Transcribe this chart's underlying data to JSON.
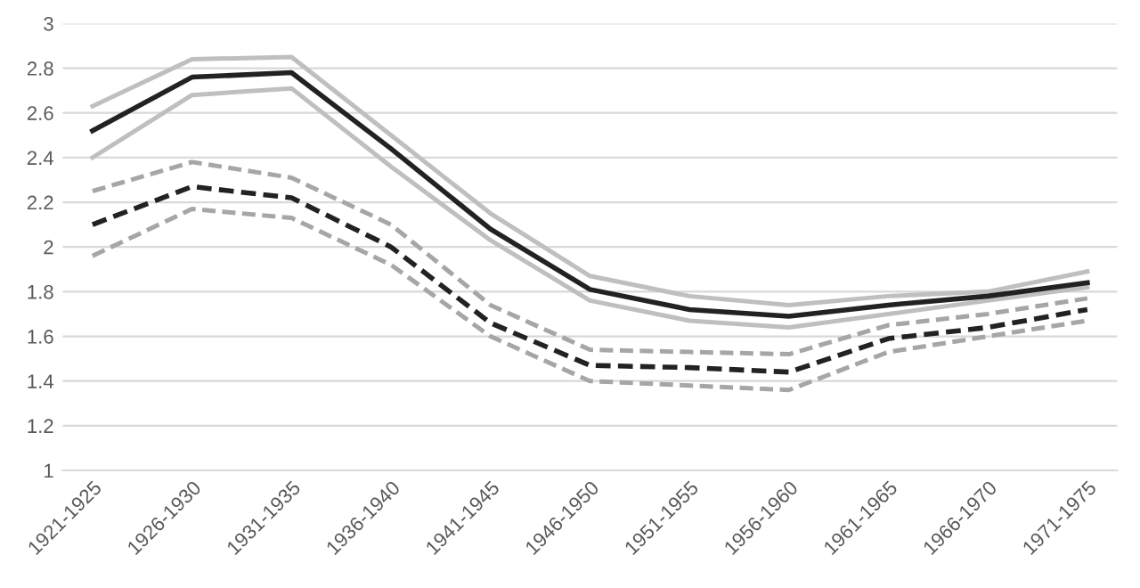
{
  "chart_data": {
    "type": "line",
    "categories": [
      "1921-1925",
      "1926-1930",
      "1931-1935",
      "1936-1940",
      "1941-1945",
      "1946-1950",
      "1951-1955",
      "1956-1960",
      "1961-1965",
      "1966-1970",
      "1971-1975"
    ],
    "series": [
      {
        "color": "#bfbfbf",
        "line_style": "solid",
        "values": [
          2.63,
          2.84,
          2.85,
          2.5,
          2.15,
          1.87,
          1.78,
          1.74,
          1.78,
          1.8,
          1.89
        ]
      },
      {
        "color": "#bfbfbf",
        "line_style": "solid",
        "values": [
          2.4,
          2.68,
          2.71,
          2.36,
          2.03,
          1.76,
          1.67,
          1.64,
          1.7,
          1.76,
          1.82
        ]
      },
      {
        "color": "#a6a6a6",
        "line_style": "dashed",
        "values": [
          2.25,
          2.38,
          2.31,
          2.1,
          1.74,
          1.54,
          1.53,
          1.52,
          1.65,
          1.7,
          1.77
        ]
      },
      {
        "color": "#a6a6a6",
        "line_style": "dashed",
        "values": [
          1.96,
          2.17,
          2.13,
          1.92,
          1.6,
          1.4,
          1.38,
          1.36,
          1.53,
          1.6,
          1.67
        ]
      },
      {
        "color": "#222222",
        "line_style": "solid",
        "values": [
          2.52,
          2.76,
          2.78,
          2.44,
          2.08,
          1.81,
          1.72,
          1.69,
          1.74,
          1.78,
          1.84
        ]
      },
      {
        "color": "#222222",
        "line_style": "dashed",
        "values": [
          2.1,
          2.27,
          2.22,
          2.0,
          1.66,
          1.47,
          1.46,
          1.44,
          1.59,
          1.64,
          1.72
        ]
      }
    ],
    "ylim": [
      1,
      3
    ],
    "yticks": [
      1,
      1.2,
      1.4,
      1.6,
      1.8,
      2,
      2.2,
      2.4,
      2.6,
      2.8,
      3
    ],
    "grid": "y",
    "marker": "none"
  }
}
